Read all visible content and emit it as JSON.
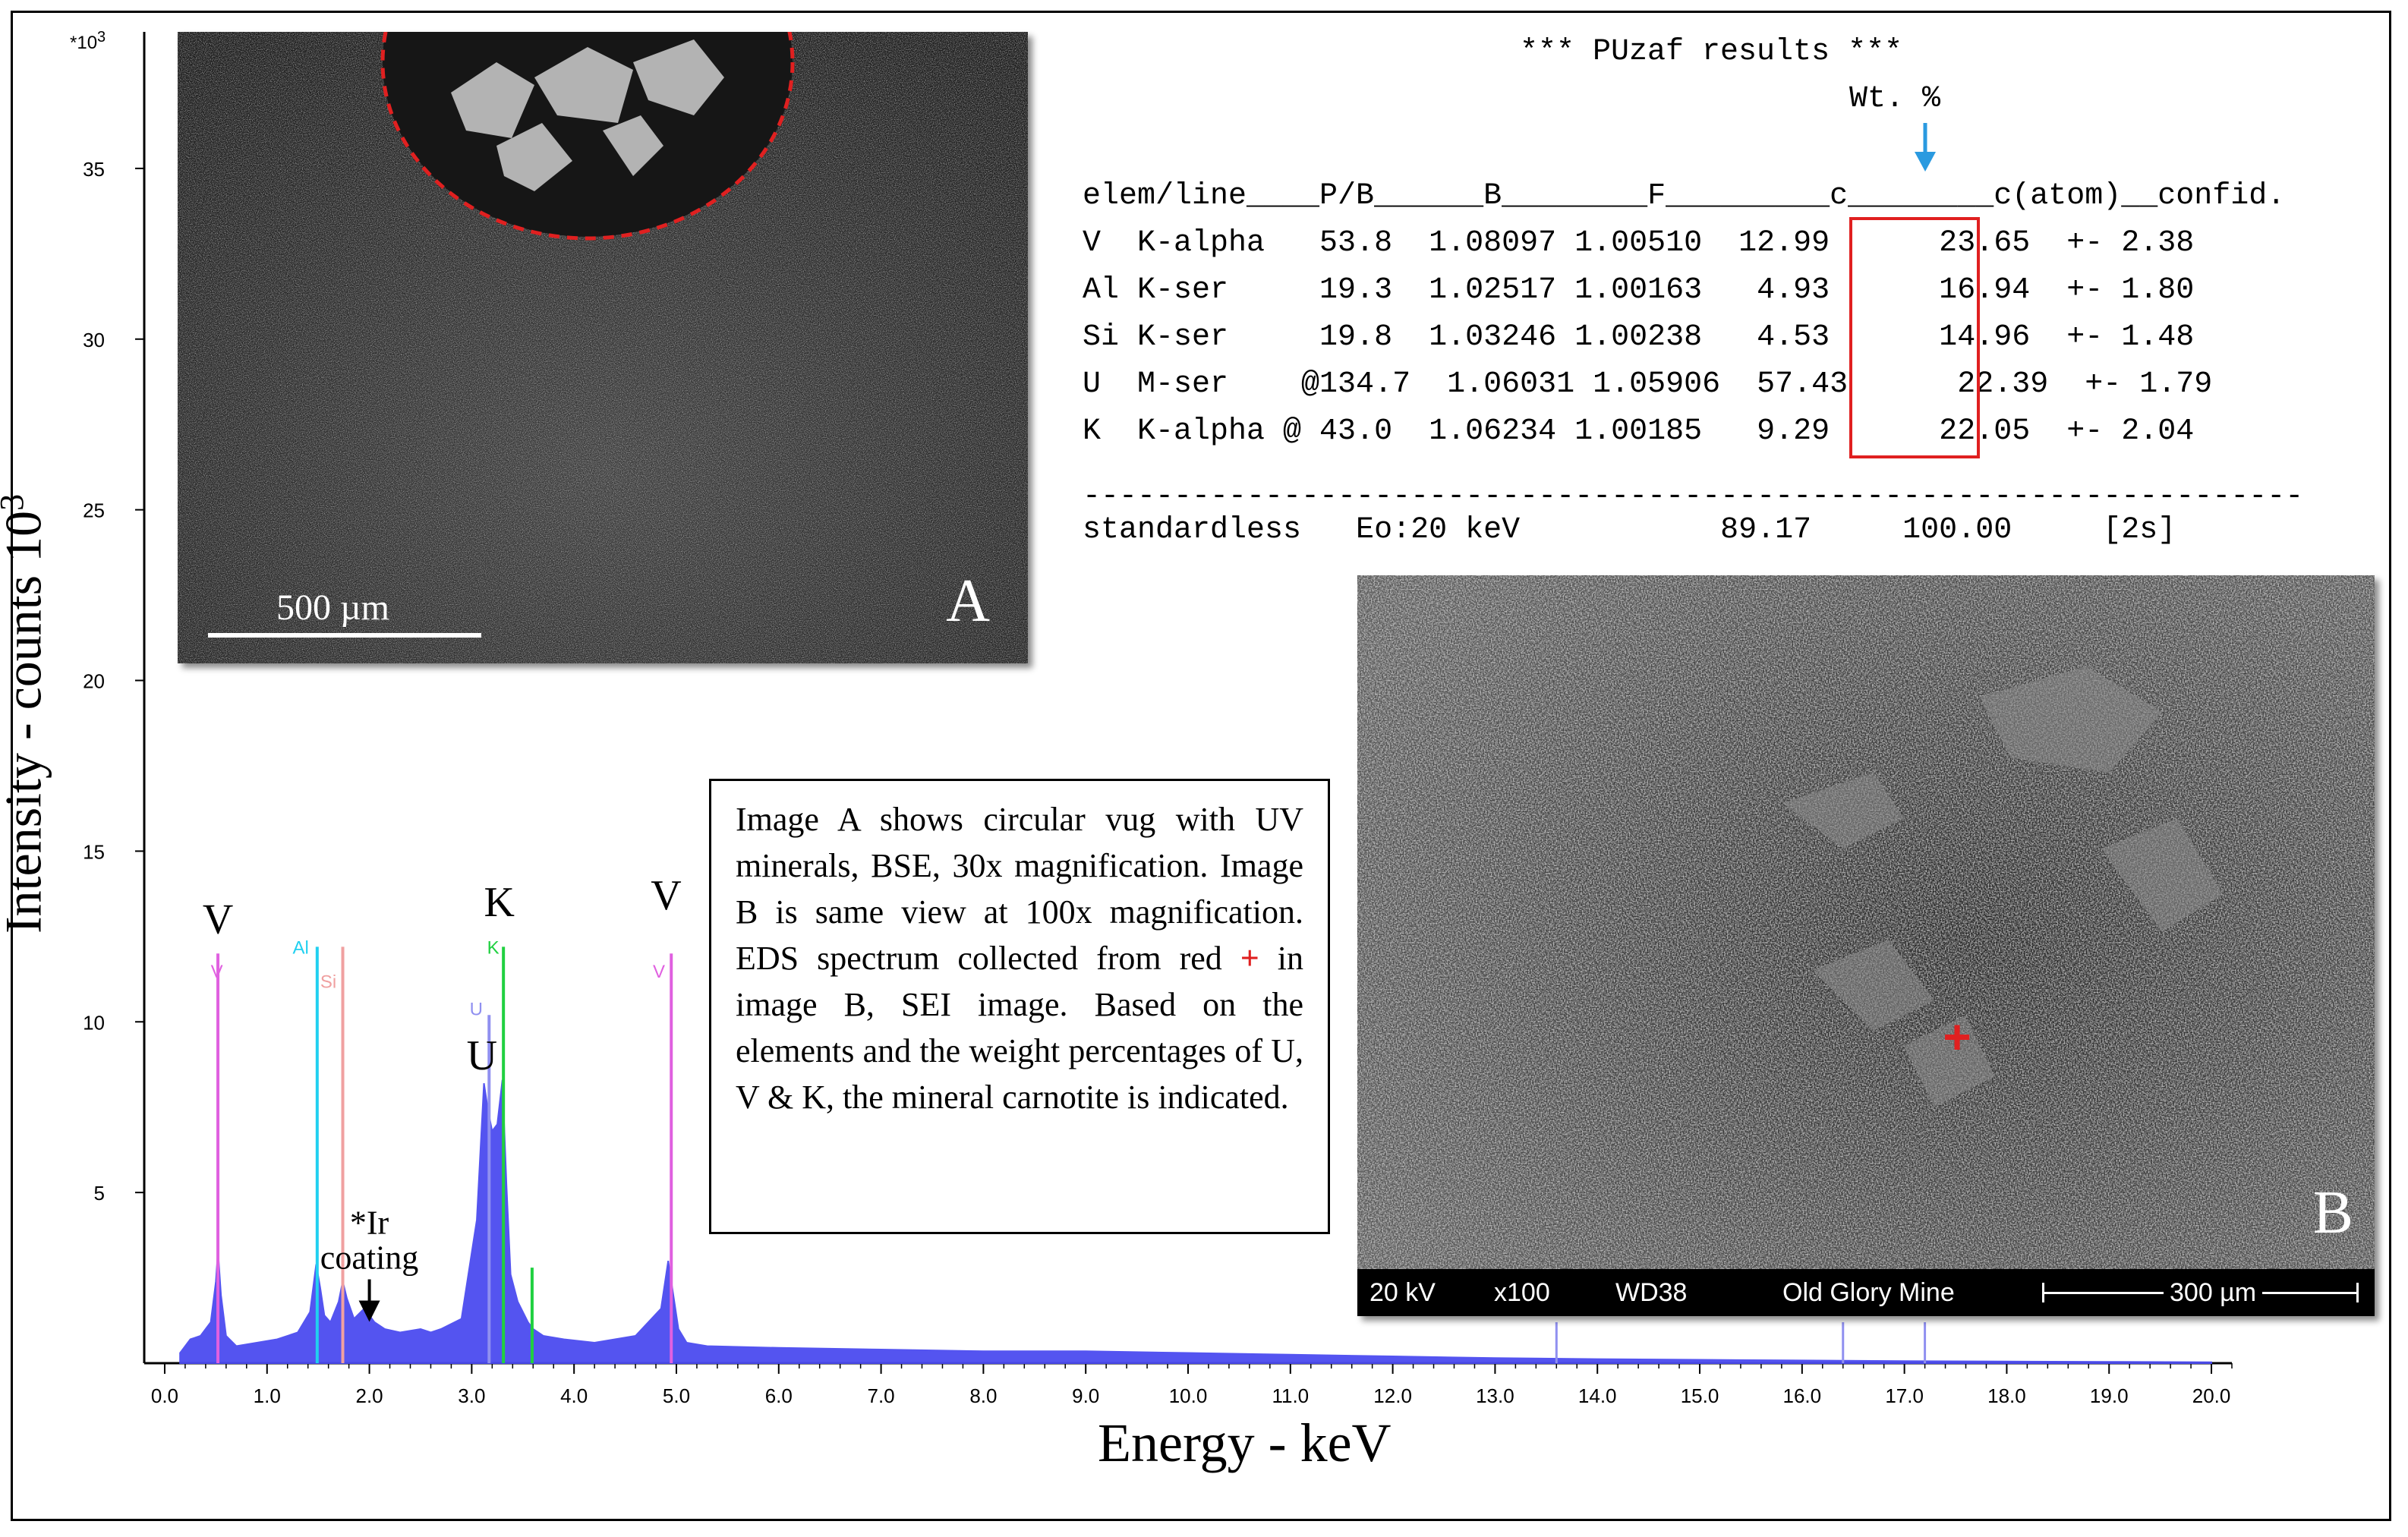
{
  "chart_data": {
    "type": "area",
    "title": "",
    "xlabel": "Energy - keV",
    "ylabel": "Intensity - counts 10",
    "ylabel_sup": "3",
    "y_multiplier_label": "*10",
    "y_multiplier_sup": "3",
    "xlim": [
      -0.2,
      20.2
    ],
    "ylim": [
      0,
      39
    ],
    "x_ticks": [
      "0.0",
      "1.0",
      "2.0",
      "3.0",
      "4.0",
      "5.0",
      "6.0",
      "7.0",
      "8.0",
      "9.0",
      "10.0",
      "11.0",
      "12.0",
      "13.0",
      "14.0",
      "15.0",
      "16.0",
      "17.0",
      "18.0",
      "19.0",
      "20.0"
    ],
    "x_tick_values": [
      0,
      1,
      2,
      3,
      4,
      5,
      6,
      7,
      8,
      9,
      10,
      11,
      12,
      13,
      14,
      15,
      16,
      17,
      18,
      19,
      20
    ],
    "y_ticks": [
      "5",
      "10",
      "15",
      "20",
      "25",
      "30",
      "35"
    ],
    "y_tick_values": [
      5,
      10,
      15,
      20,
      25,
      30,
      35
    ],
    "spectrum_color": "#4b4bf0",
    "spectrum": {
      "x": [
        0.15,
        0.25,
        0.35,
        0.45,
        0.5,
        0.52,
        0.55,
        0.6,
        0.7,
        0.9,
        1.1,
        1.3,
        1.42,
        1.48,
        1.52,
        1.56,
        1.62,
        1.7,
        1.74,
        1.78,
        1.85,
        1.95,
        2.05,
        2.15,
        2.3,
        2.5,
        2.6,
        2.7,
        2.9,
        3.05,
        3.12,
        3.16,
        3.2,
        3.25,
        3.3,
        3.34,
        3.38,
        3.45,
        3.55,
        3.6,
        3.7,
        3.9,
        4.2,
        4.6,
        4.85,
        4.92,
        4.96,
        5.02,
        5.1,
        5.3,
        6.0,
        7.0,
        8.0,
        9.0,
        10.0,
        11.0,
        12.0,
        13.0,
        14.0,
        15.0,
        16.0,
        17.0,
        18.0,
        19.0,
        20.0
      ],
      "y": [
        0.3,
        0.7,
        0.8,
        1.2,
        2.4,
        3.3,
        2.0,
        0.8,
        0.5,
        0.6,
        0.7,
        0.9,
        1.5,
        2.9,
        2.2,
        1.4,
        1.2,
        1.8,
        2.4,
        1.9,
        1.3,
        1.6,
        1.2,
        1.0,
        0.9,
        1.0,
        0.9,
        1.0,
        1.3,
        4.2,
        8.2,
        7.4,
        6.8,
        7.0,
        8.3,
        5.2,
        2.6,
        1.8,
        1.2,
        1.0,
        0.8,
        0.7,
        0.6,
        0.8,
        1.6,
        3.0,
        2.2,
        1.0,
        0.6,
        0.5,
        0.45,
        0.4,
        0.35,
        0.35,
        0.3,
        0.25,
        0.2,
        0.15,
        0.12,
        0.1,
        0.08,
        0.06,
        0.05,
        0.04,
        0.03
      ]
    },
    "markers": [
      {
        "name": "V",
        "x": 0.52,
        "height": 12.0,
        "color": "#e060e0"
      },
      {
        "name": "Al",
        "x": 1.49,
        "height": 12.2,
        "color": "#20d0f0"
      },
      {
        "name": "Si",
        "x": 1.74,
        "height": 12.2,
        "color": "#f0a0a0"
      },
      {
        "name": "U",
        "x": 3.17,
        "height": 10.2,
        "color": "#9090f0"
      },
      {
        "name": "K",
        "x": 3.31,
        "height": 12.2,
        "color": "#20d040"
      },
      {
        "name": "K",
        "x": 3.59,
        "height": 2.8,
        "color": "#20d040"
      },
      {
        "name": "V",
        "x": 4.95,
        "height": 12.0,
        "color": "#e060e0"
      }
    ],
    "extra_lines": [
      {
        "x": 13.6,
        "height": 1.2,
        "color": "#9090f0"
      },
      {
        "x": 16.4,
        "height": 1.2,
        "color": "#9090f0"
      },
      {
        "x": 17.2,
        "height": 1.2,
        "color": "#9090f0"
      }
    ],
    "peak_labels": [
      {
        "text": "V",
        "x": 0.52,
        "y": 12.6
      },
      {
        "text": "K",
        "x": 3.27,
        "y": 13.1
      },
      {
        "text": "U",
        "x": 3.1,
        "y": 8.6
      },
      {
        "text": "V",
        "x": 4.9,
        "y": 13.3
      }
    ],
    "marker_labels": [
      {
        "text": "V",
        "x": 0.45,
        "y": 11.3,
        "color": "#e060e0"
      },
      {
        "text": "Al",
        "x": 1.25,
        "y": 12.0,
        "color": "#20d0f0"
      },
      {
        "text": "Si",
        "x": 1.52,
        "y": 11.0,
        "color": "#f0a0a0"
      },
      {
        "text": "K",
        "x": 3.15,
        "y": 12.0,
        "color": "#20d040"
      },
      {
        "text": "U",
        "x": 2.98,
        "y": 10.2,
        "color": "#9090f0"
      },
      {
        "text": "V",
        "x": 4.77,
        "y": 11.3,
        "color": "#e060e0"
      }
    ],
    "annotation": {
      "line1": "*Ir",
      "line2": "coating",
      "x": 2.0,
      "y": 1.3
    }
  },
  "panel_a": {
    "letter": "A",
    "scale_label": "500 µm",
    "vug_color": "#e02020"
  },
  "panel_b": {
    "letter": "B",
    "status": {
      "kv": "20 kV",
      "mag": "x100",
      "wd": "WD38",
      "site": "Old Glory Mine",
      "scale": "300 µm"
    },
    "marker_color": "#e02020"
  },
  "puzaf": {
    "title": "*** PUzaf results ***",
    "wt_label": "Wt. %",
    "arrow_color": "#2a9ae0",
    "box_color": "#e02020",
    "header": "elem/line____P/B______B________F_________c________c(atom)__confid.",
    "rows": [
      "V  K-alpha   53.8  1.08097 1.00510  12.99      23.65  +- 2.38",
      "Al K-ser     19.3  1.02517 1.00163   4.93      16.94  +- 1.80",
      "Si K-ser     19.8  1.03246 1.00238   4.53      14.96  +- 1.48",
      "U  M-ser    @134.7  1.06031 1.05906  57.43      22.39  +- 1.79",
      "K  K-alpha @ 43.0  1.06234 1.00185   9.29      22.05  +- 2.04"
    ],
    "rule": "-------------------------------------------------------------------",
    "total": "standardless   Eo:20 keV           89.17     100.00     [2s]"
  },
  "caption": {
    "part1": "Image A shows circular vug with UV minerals, BSE, 30x magnification. Image B is same view at 100x magnification. EDS spectrum collected from red",
    "plus": "+",
    "part2": "in image B, SEI image. Based on the elements and the weight percentages of U, V & K, the mineral carnotite is indicated."
  }
}
